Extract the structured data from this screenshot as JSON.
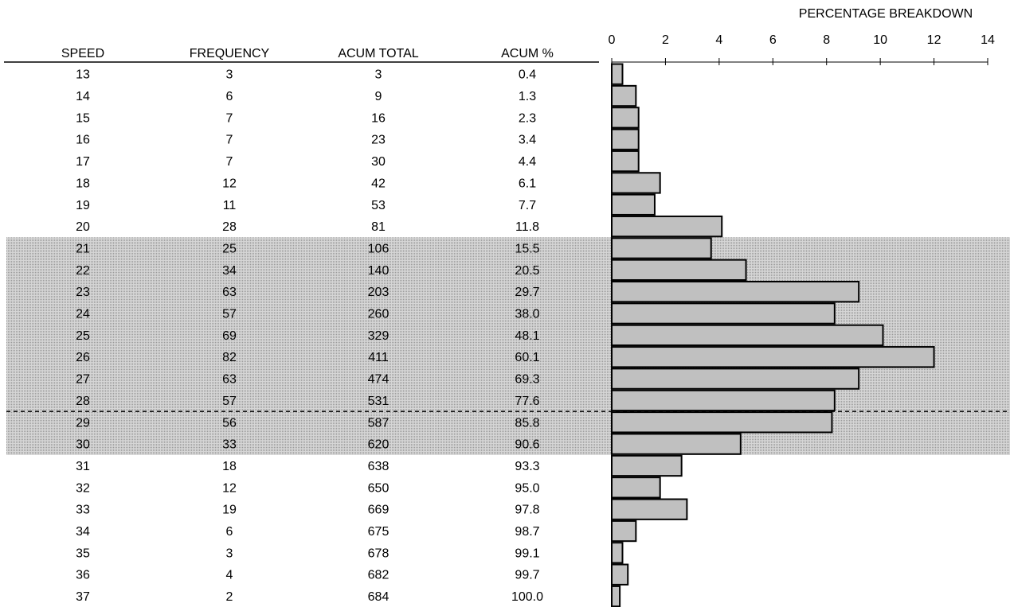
{
  "chart_data": {
    "type": "bar",
    "title": "PERCENTAGE BREAKDOWN",
    "table": {
      "columns": [
        "SPEED",
        "FREQUENCY",
        "ACUM TOTAL",
        "ACUM %"
      ],
      "rows": [
        [
          "13",
          "3",
          "3",
          "0.4"
        ],
        [
          "14",
          "6",
          "9",
          "1.3"
        ],
        [
          "15",
          "7",
          "16",
          "2.3"
        ],
        [
          "16",
          "7",
          "23",
          "3.4"
        ],
        [
          "17",
          "7",
          "30",
          "4.4"
        ],
        [
          "18",
          "12",
          "42",
          "6.1"
        ],
        [
          "19",
          "11",
          "53",
          "7.7"
        ],
        [
          "20",
          "28",
          "81",
          "11.8"
        ],
        [
          "21",
          "25",
          "106",
          "15.5"
        ],
        [
          "22",
          "34",
          "140",
          "20.5"
        ],
        [
          "23",
          "63",
          "203",
          "29.7"
        ],
        [
          "24",
          "57",
          "260",
          "38.0"
        ],
        [
          "25",
          "69",
          "329",
          "48.1"
        ],
        [
          "26",
          "82",
          "411",
          "60.1"
        ],
        [
          "27",
          "63",
          "474",
          "69.3"
        ],
        [
          "28",
          "57",
          "531",
          "77.6"
        ],
        [
          "29",
          "56",
          "587",
          "85.8"
        ],
        [
          "30",
          "33",
          "620",
          "90.6"
        ],
        [
          "31",
          "18",
          "638",
          "93.3"
        ],
        [
          "32",
          "12",
          "650",
          "95.0"
        ],
        [
          "33",
          "19",
          "669",
          "97.8"
        ],
        [
          "34",
          "6",
          "675",
          "98.7"
        ],
        [
          "35",
          "3",
          "678",
          "99.1"
        ],
        [
          "36",
          "4",
          "682",
          "99.7"
        ],
        [
          "37",
          "2",
          "684",
          "100.0"
        ]
      ]
    },
    "categories": [
      "13",
      "14",
      "15",
      "16",
      "17",
      "18",
      "19",
      "20",
      "21",
      "22",
      "23",
      "24",
      "25",
      "26",
      "27",
      "28",
      "29",
      "30",
      "31",
      "32",
      "33",
      "34",
      "35",
      "36",
      "37"
    ],
    "values": [
      0.4,
      0.9,
      1.0,
      1.0,
      1.0,
      1.8,
      1.6,
      4.1,
      3.7,
      5.0,
      9.2,
      8.3,
      10.1,
      12.0,
      9.2,
      8.3,
      8.2,
      4.8,
      2.6,
      1.8,
      2.8,
      0.9,
      0.4,
      0.6,
      0.3
    ],
    "xlim": [
      0,
      14
    ],
    "xticks": [
      "0",
      "2",
      "4",
      "6",
      "8",
      "10",
      "12",
      "14"
    ],
    "highlight_rows": [
      8,
      17
    ],
    "dashed_line_after_row": 15,
    "orientation": "horizontal",
    "grid": false
  },
  "colors": {
    "bar_fill": "#c0c0c0",
    "band_fill": "#c8c8c8",
    "bar_stroke": "#000000",
    "text": "#000000",
    "background": "#ffffff"
  }
}
